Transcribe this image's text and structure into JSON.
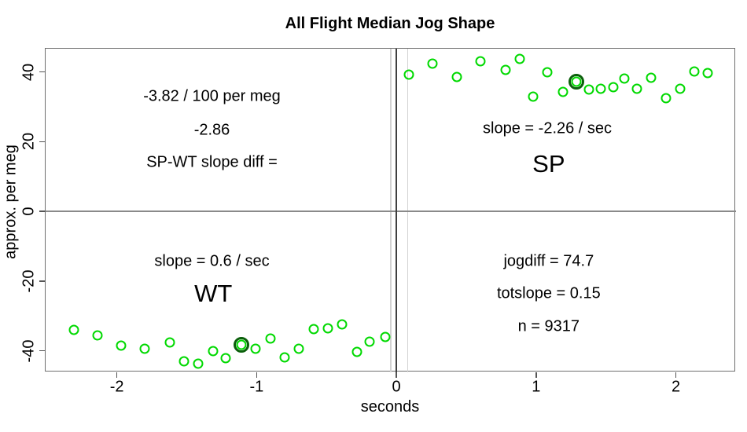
{
  "figure": {
    "background": "#ffffff"
  },
  "chart_data": {
    "type": "scatter",
    "title": "All Flight Median Jog Shape",
    "xlabel": "seconds",
    "ylabel": "approx. per meg",
    "xlim": [
      -2.51,
      2.43
    ],
    "ylim": [
      -46.2,
      46.7
    ],
    "x_ticks": [
      -2,
      -1,
      0,
      1,
      2
    ],
    "y_ticks": [
      -40,
      -20,
      0,
      20,
      40
    ],
    "grid": false,
    "legend": "none",
    "point_color": "#00d900",
    "highlight_color": "#0b600b",
    "zero_h_line_color": "#8a8a8a",
    "zero_v_line_color": "#3f3f3f",
    "guide_line_color": "#d2d2d2",
    "guide_lines_x": [
      -0.04,
      0.08
    ],
    "zero_lines": {
      "h": 0,
      "v": 0
    },
    "series": [
      {
        "name": "WT",
        "highlight_index": 9,
        "points": [
          [
            -2.31,
            -34.0
          ],
          [
            -2.14,
            -35.6
          ],
          [
            -1.97,
            -38.5
          ],
          [
            -1.8,
            -39.4
          ],
          [
            -1.62,
            -37.6
          ],
          [
            -1.52,
            -43.0
          ],
          [
            -1.42,
            -43.7
          ],
          [
            -1.31,
            -40.1
          ],
          [
            -1.22,
            -42.1
          ],
          [
            -1.11,
            -38.3
          ],
          [
            -1.01,
            -39.4
          ],
          [
            -0.9,
            -36.5
          ],
          [
            -0.8,
            -41.9
          ],
          [
            -0.7,
            -39.4
          ],
          [
            -0.59,
            -33.8
          ],
          [
            -0.49,
            -33.6
          ],
          [
            -0.39,
            -32.4
          ],
          [
            -0.28,
            -40.3
          ],
          [
            -0.19,
            -37.4
          ],
          [
            -0.08,
            -36.1
          ]
        ]
      },
      {
        "name": "SP",
        "highlight_index": 9,
        "points": [
          [
            0.09,
            39.2
          ],
          [
            0.26,
            42.4
          ],
          [
            0.43,
            38.5
          ],
          [
            0.6,
            43.0
          ],
          [
            0.78,
            40.6
          ],
          [
            0.88,
            43.7
          ],
          [
            0.98,
            32.9
          ],
          [
            1.08,
            39.9
          ],
          [
            1.19,
            34.3
          ],
          [
            1.29,
            37.2
          ],
          [
            1.38,
            34.9
          ],
          [
            1.46,
            35.2
          ],
          [
            1.55,
            35.6
          ],
          [
            1.63,
            38.1
          ],
          [
            1.72,
            35.2
          ],
          [
            1.82,
            38.3
          ],
          [
            1.93,
            32.4
          ],
          [
            2.03,
            35.2
          ],
          [
            2.13,
            40.1
          ],
          [
            2.23,
            39.7
          ]
        ]
      }
    ],
    "annotations": [
      {
        "name": "slope-per-meg-label",
        "text": "-3.82 / 100 per meg",
        "x": -1.32,
        "y": 32.9,
        "size": "normal"
      },
      {
        "name": "slope-diff-value",
        "text": "-2.86",
        "x": -1.32,
        "y": 23.2,
        "size": "normal"
      },
      {
        "name": "slope-diff-label",
        "text": "SP-WT slope diff =",
        "x": -1.32,
        "y": 14.0,
        "size": "normal"
      },
      {
        "name": "sp-slope-label",
        "text": "slope = -2.26 / sec",
        "x": 1.08,
        "y": 23.7,
        "size": "normal"
      },
      {
        "name": "sp-group-label",
        "text": "SP",
        "x": 1.09,
        "y": 13.5,
        "size": "large"
      },
      {
        "name": "wt-slope-label",
        "text": "slope = 0.6 / sec",
        "x": -1.32,
        "y": -14.4,
        "size": "normal"
      },
      {
        "name": "wt-group-label",
        "text": "WT",
        "x": -1.31,
        "y": -23.6,
        "size": "large"
      },
      {
        "name": "jogdiff-label",
        "text": "jogdiff = 74.7",
        "x": 1.09,
        "y": -14.4,
        "size": "normal"
      },
      {
        "name": "totslope-label",
        "text": "totslope = 0.15",
        "x": 1.09,
        "y": -23.7,
        "size": "normal"
      },
      {
        "name": "n-count-label",
        "text": "n = 9317",
        "x": 1.09,
        "y": -33.1,
        "size": "normal"
      }
    ]
  }
}
